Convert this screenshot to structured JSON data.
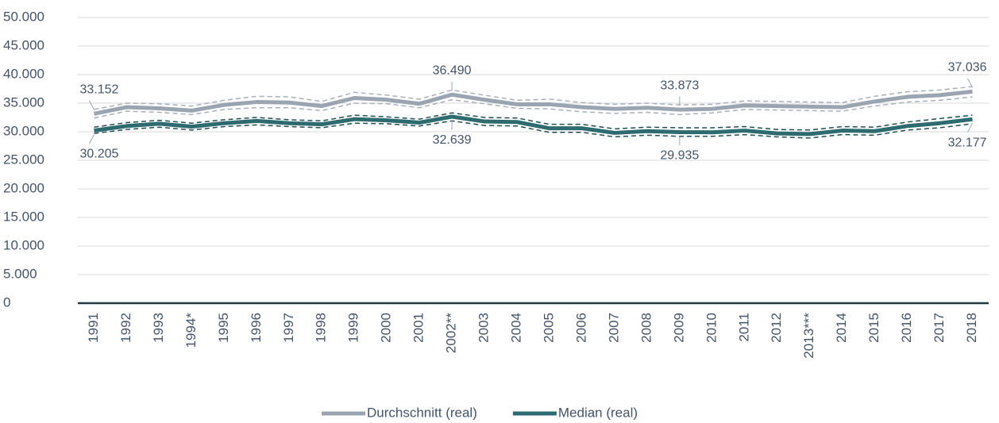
{
  "chart_data": {
    "type": "line",
    "categories": [
      "1991",
      "1992",
      "1993",
      "1994*",
      "1995",
      "1996",
      "1997",
      "1998",
      "1999",
      "2000",
      "2001",
      "2002**",
      "2003",
      "2004",
      "2005",
      "2006",
      "2007",
      "2008",
      "2009",
      "2010",
      "2011",
      "2012",
      "2013***",
      "2014",
      "2015",
      "2016",
      "2017",
      "2018"
    ],
    "series": [
      {
        "name": "Durchschnitt (real)",
        "color": "#9aa5b1",
        "values": [
          33152,
          34300,
          34100,
          33700,
          34700,
          35200,
          35100,
          34500,
          35900,
          35600,
          34900,
          36490,
          35600,
          34800,
          34800,
          34300,
          34000,
          34200,
          33873,
          34000,
          34600,
          34500,
          34400,
          34300,
          35300,
          36100,
          36400,
          37036
        ],
        "value_labels": [
          "33.152",
          null,
          null,
          null,
          null,
          null,
          null,
          null,
          null,
          null,
          null,
          "36.490",
          null,
          null,
          null,
          null,
          null,
          null,
          "33.873",
          null,
          null,
          null,
          null,
          null,
          null,
          null,
          null,
          "37.036"
        ],
        "lower": [
          32400,
          33600,
          33400,
          33000,
          33900,
          34200,
          34200,
          33700,
          35000,
          34900,
          34200,
          35600,
          34900,
          34100,
          34000,
          33500,
          33200,
          33400,
          33000,
          33300,
          33900,
          33800,
          33700,
          33600,
          34500,
          35200,
          35500,
          36100
        ],
        "upper": [
          33900,
          35000,
          34900,
          34500,
          35500,
          36200,
          36100,
          35300,
          36900,
          36400,
          35700,
          37300,
          36400,
          35500,
          35700,
          35100,
          34800,
          35000,
          34700,
          34800,
          35400,
          35300,
          35200,
          35100,
          36200,
          37000,
          37300,
          37900
        ]
      },
      {
        "name": "Median (real)",
        "color": "#2e6b70",
        "values": [
          30205,
          31000,
          31400,
          30900,
          31500,
          31900,
          31500,
          31300,
          32200,
          32000,
          31600,
          32639,
          31800,
          31700,
          30600,
          30600,
          29800,
          30100,
          29935,
          29900,
          30200,
          29700,
          29600,
          30200,
          30100,
          31000,
          31500,
          32177
        ],
        "value_labels": [
          "30.205",
          null,
          null,
          null,
          null,
          null,
          null,
          null,
          null,
          null,
          null,
          "32.639",
          null,
          null,
          null,
          null,
          null,
          null,
          "29.935",
          null,
          null,
          null,
          null,
          null,
          null,
          null,
          null,
          "32.177"
        ],
        "lower": [
          29700,
          30400,
          30800,
          30300,
          30900,
          31200,
          30900,
          30700,
          31500,
          31400,
          31000,
          31900,
          31100,
          31000,
          29900,
          29900,
          29100,
          29400,
          29200,
          29200,
          29500,
          29100,
          28900,
          29500,
          29400,
          30300,
          30700,
          31400
        ],
        "upper": [
          30800,
          31600,
          32000,
          31500,
          32100,
          32500,
          32100,
          31900,
          32900,
          32600,
          32200,
          33300,
          32500,
          32400,
          31300,
          31300,
          30500,
          30800,
          30700,
          30700,
          30900,
          30400,
          30300,
          30900,
          30800,
          31700,
          32300,
          32900
        ]
      }
    ],
    "ylim": [
      0,
      50000
    ],
    "yticks": [
      0,
      {
        "value": 5000,
        "label": "5.000"
      },
      {
        "value": 10000,
        "label": "10.000"
      },
      {
        "value": 15000,
        "label": "15.000"
      },
      {
        "value": 20000,
        "label": "20.000"
      },
      {
        "value": 25000,
        "label": "25.000"
      },
      {
        "value": 30000,
        "label": "30.000"
      },
      {
        "value": 35000,
        "label": "35.000"
      },
      {
        "value": 40000,
        "label": "40.000"
      },
      {
        "value": 45000,
        "label": "45.000"
      },
      {
        "value": 50000,
        "label": "50.000"
      }
    ],
    "grid": true
  }
}
